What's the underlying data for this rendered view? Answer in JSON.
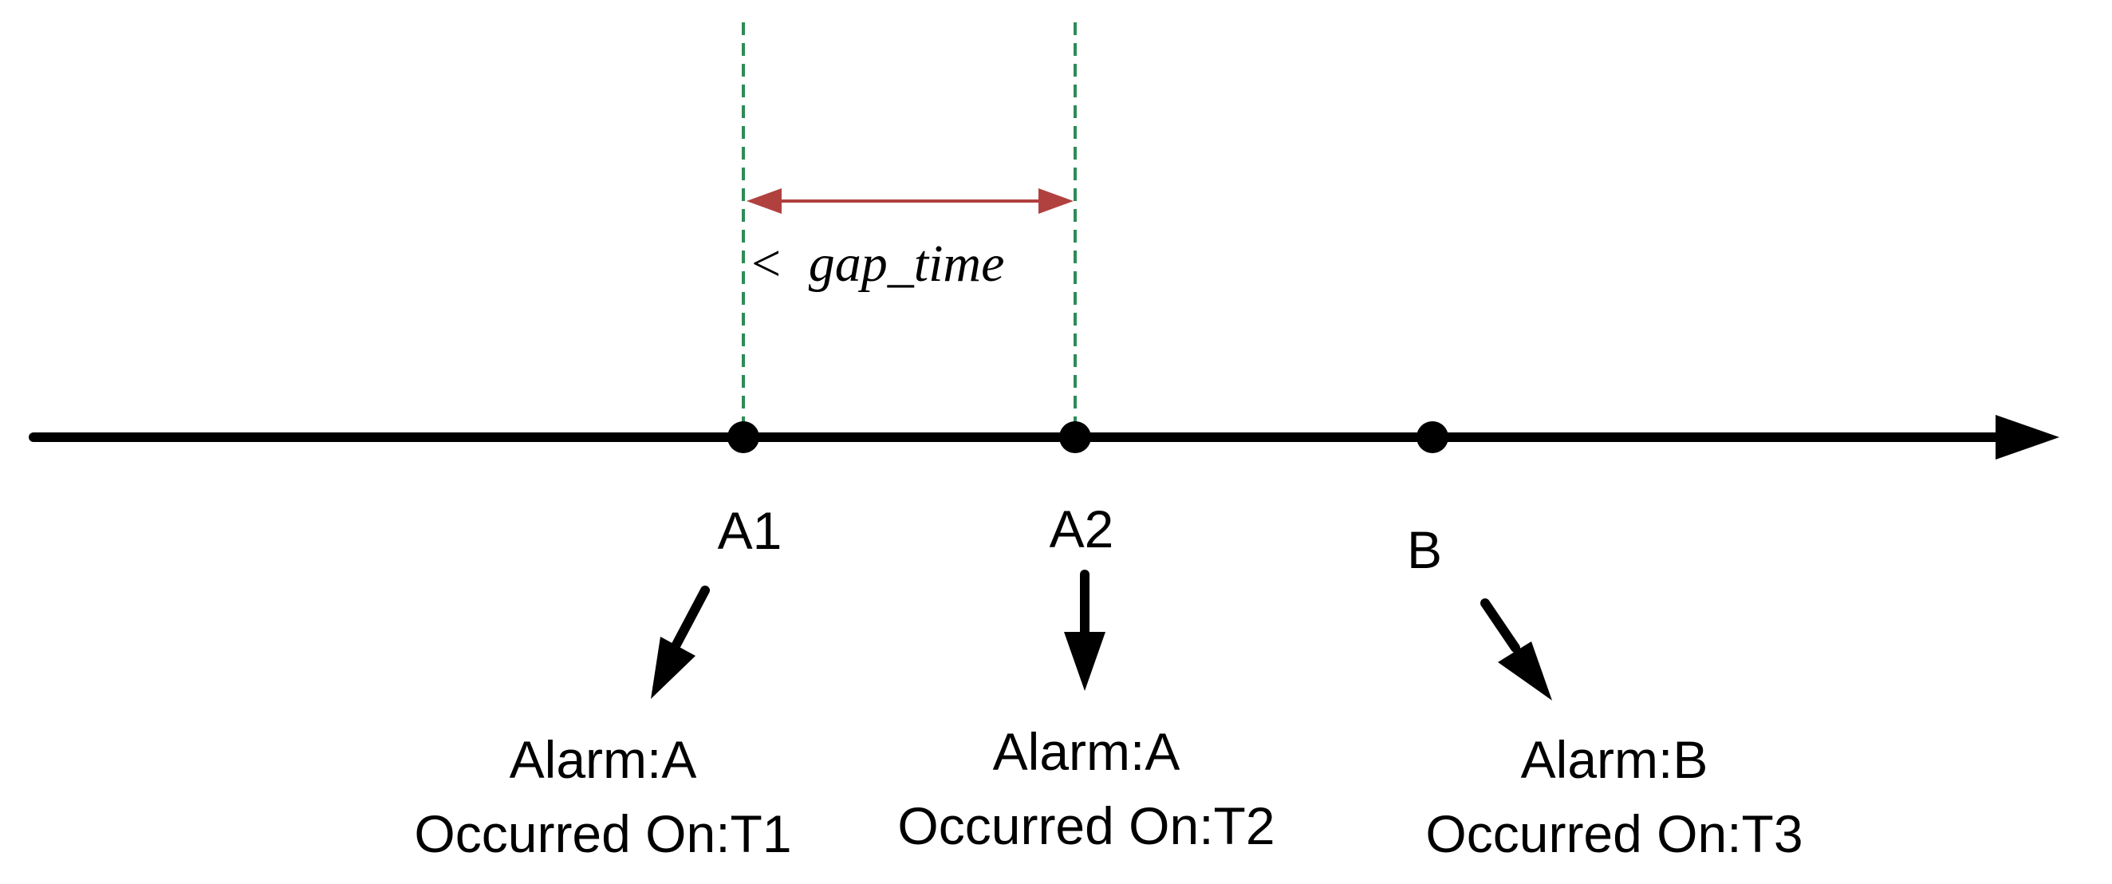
{
  "diagram": {
    "gap_label": {
      "symbol": "<",
      "text": "gap_time",
      "full": "< gap_time",
      "color": "#b0413e"
    },
    "guide_color": "#2e8b57",
    "axis_color": "#000000",
    "events": [
      {
        "id": "A1",
        "alarm": "Alarm:A",
        "occurred": "Occurred On:T1"
      },
      {
        "id": "A2",
        "alarm": "Alarm:A",
        "occurred": "Occurred On:T2"
      },
      {
        "id": "B",
        "alarm": "Alarm:B",
        "occurred": "Occurred On:T3"
      }
    ]
  }
}
